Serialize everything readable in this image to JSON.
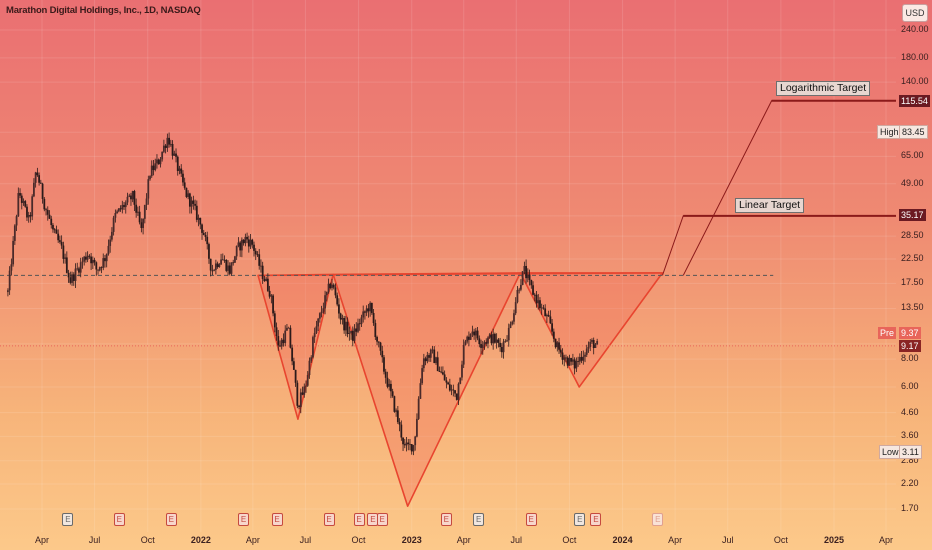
{
  "chart_data": {
    "type": "candlestick",
    "title": "Marathon Digital Holdings, Inc., 1D, NASDAQ",
    "currency": "USD",
    "scale": "log",
    "x_ticks": [
      {
        "label": "Apr",
        "date": "2021-04-01",
        "bold": false
      },
      {
        "label": "Jul",
        "date": "2021-07-01",
        "bold": false
      },
      {
        "label": "Oct",
        "date": "2021-10-01",
        "bold": false
      },
      {
        "label": "2022",
        "date": "2022-01-01",
        "bold": true
      },
      {
        "label": "Apr",
        "date": "2022-04-01",
        "bold": false
      },
      {
        "label": "Jul",
        "date": "2022-07-01",
        "bold": false
      },
      {
        "label": "Oct",
        "date": "2022-10-01",
        "bold": false
      },
      {
        "label": "2023",
        "date": "2023-01-01",
        "bold": true
      },
      {
        "label": "Apr",
        "date": "2023-04-01",
        "bold": false
      },
      {
        "label": "Jul",
        "date": "2023-07-01",
        "bold": false
      },
      {
        "label": "Oct",
        "date": "2023-10-01",
        "bold": false
      },
      {
        "label": "2024",
        "date": "2024-01-01",
        "bold": true
      },
      {
        "label": "Apr",
        "date": "2024-04-01",
        "bold": false
      },
      {
        "label": "Jul",
        "date": "2024-07-01",
        "bold": false
      },
      {
        "label": "Oct",
        "date": "2024-10-01",
        "bold": false
      },
      {
        "label": "2025",
        "date": "2025-01-01",
        "bold": true
      },
      {
        "label": "Apr",
        "date": "2025-04-01",
        "bold": false
      }
    ],
    "y_ticks": [
      "240.00",
      "180.00",
      "140.00",
      "83.45",
      "65.00",
      "49.00",
      "35.17",
      "28.50",
      "22.50",
      "17.50",
      "13.50",
      "9.37",
      "8.00",
      "6.00",
      "4.60",
      "3.60",
      "2.80",
      "2.20",
      "1.70"
    ],
    "price_path": [
      [
        "2021-02-01",
        16
      ],
      [
        "2021-02-20",
        45
      ],
      [
        "2021-03-10",
        33
      ],
      [
        "2021-03-22",
        57
      ],
      [
        "2021-04-05",
        40
      ],
      [
        "2021-04-20",
        30
      ],
      [
        "2021-05-05",
        25
      ],
      [
        "2021-05-20",
        18
      ],
      [
        "2021-06-05",
        21
      ],
      [
        "2021-06-20",
        24
      ],
      [
        "2021-07-05",
        20
      ],
      [
        "2021-07-20",
        23
      ],
      [
        "2021-08-05",
        35
      ],
      [
        "2021-08-20",
        39
      ],
      [
        "2021-09-05",
        43
      ],
      [
        "2021-09-20",
        30
      ],
      [
        "2021-10-05",
        55
      ],
      [
        "2021-10-20",
        62
      ],
      [
        "2021-11-05",
        80
      ],
      [
        "2021-11-20",
        60
      ],
      [
        "2021-12-05",
        45
      ],
      [
        "2021-12-20",
        38
      ],
      [
        "2022-01-05",
        30
      ],
      [
        "2022-01-20",
        20
      ],
      [
        "2022-02-05",
        23
      ],
      [
        "2022-02-20",
        20
      ],
      [
        "2022-03-05",
        25
      ],
      [
        "2022-03-20",
        28
      ],
      [
        "2022-04-01",
        26
      ],
      [
        "2022-04-15",
        20
      ],
      [
        "2022-05-01",
        16
      ],
      [
        "2022-05-15",
        9
      ],
      [
        "2022-06-01",
        11
      ],
      [
        "2022-06-18",
        5
      ],
      [
        "2022-07-01",
        6
      ],
      [
        "2022-07-15",
        10
      ],
      [
        "2022-08-01",
        14
      ],
      [
        "2022-08-15",
        18
      ],
      [
        "2022-09-01",
        12
      ],
      [
        "2022-09-20",
        10
      ],
      [
        "2022-10-05",
        12
      ],
      [
        "2022-10-20",
        14
      ],
      [
        "2022-11-01",
        10
      ],
      [
        "2022-11-15",
        7
      ],
      [
        "2022-12-01",
        5
      ],
      [
        "2022-12-20",
        3.2
      ],
      [
        "2023-01-05",
        3.3
      ],
      [
        "2023-01-20",
        8
      ],
      [
        "2023-02-05",
        8.5
      ],
      [
        "2023-02-20",
        7
      ],
      [
        "2023-03-05",
        6
      ],
      [
        "2023-03-20",
        5.5
      ],
      [
        "2023-04-01",
        9
      ],
      [
        "2023-04-15",
        11
      ],
      [
        "2023-05-01",
        9.5
      ],
      [
        "2023-05-20",
        10
      ],
      [
        "2023-06-05",
        9
      ],
      [
        "2023-06-20",
        11
      ],
      [
        "2023-07-05",
        17
      ],
      [
        "2023-07-15",
        20
      ],
      [
        "2023-07-25",
        17
      ],
      [
        "2023-08-10",
        14
      ],
      [
        "2023-08-25",
        12
      ],
      [
        "2023-09-10",
        9
      ],
      [
        "2023-09-25",
        8
      ],
      [
        "2023-10-10",
        7.5
      ],
      [
        "2023-10-25",
        8.5
      ],
      [
        "2023-11-10",
        9.5
      ],
      [
        "2023-11-18",
        9.17
      ]
    ],
    "neckline": {
      "price": 19,
      "from": "2022-04-10",
      "to": "2024-04-15"
    },
    "pattern_points": [
      [
        "2022-04-10",
        19
      ],
      [
        "2022-06-18",
        4.3
      ],
      [
        "2022-08-18",
        19.2
      ],
      [
        "2022-12-25",
        1.75
      ],
      [
        "2023-07-08",
        19.5
      ],
      [
        "2023-10-18",
        6.0
      ],
      [
        "2024-03-10",
        19.5
      ]
    ],
    "projections": [
      {
        "name": "Linear Target",
        "value": 35.17,
        "from": "2024-03-10",
        "bend": "2024-04-15",
        "to": "2025-05-01"
      },
      {
        "name": "Logarithmic Target",
        "value": 115.54,
        "from": "2024-04-15",
        "bend": "2024-09-15",
        "to": "2025-05-01"
      }
    ],
    "markers": {
      "high": 83.45,
      "low": 3.11,
      "pre": 9.37,
      "last": 9.17
    },
    "earnings_dates": [
      "2021-05-15",
      "2021-08-12",
      "2021-11-10",
      "2022-03-15",
      "2022-05-12",
      "2022-08-10",
      "2022-10-01",
      "2022-10-25",
      "2022-11-10",
      "2023-03-01",
      "2023-04-26",
      "2023-07-26",
      "2023-10-18",
      "2023-11-15"
    ],
    "earnings_dark": [
      "2021-05-15",
      "2023-04-26",
      "2023-10-18"
    ],
    "earnings_future": [
      "2024-03-01"
    ]
  },
  "labels": {
    "title": "Marathon Digital Holdings, Inc., 1D, NASDAQ",
    "usd": "USD",
    "high_tag": "High",
    "high_val": "83.45",
    "low_tag": "Low",
    "low_val": "3.11",
    "pre_tag": "Pre",
    "pre_val": "9.37",
    "last_val": "9.17",
    "linear_target": "Linear Target",
    "linear_val": "35.17",
    "log_target": "Logarithmic Target",
    "log_val": "115.54",
    "earnings_glyph": "E"
  },
  "colors": {
    "pattern_stroke": "#e8452f",
    "pattern_fill": "#f26a5a",
    "candle": "#2b1a1a",
    "projection": "#8b1a1a",
    "neckline": "#555555",
    "last_price_line": "#e8655a"
  }
}
